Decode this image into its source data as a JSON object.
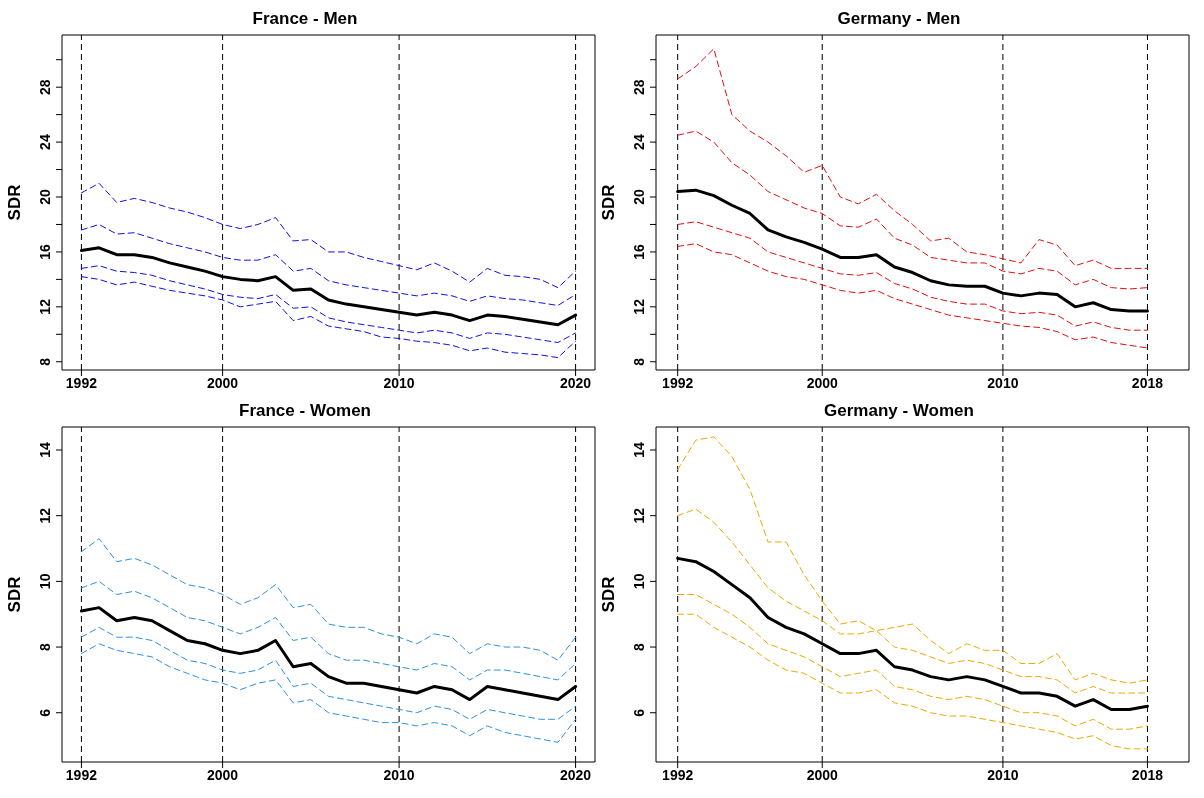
{
  "chart_data": [
    {
      "type": "line",
      "title": "France - Men",
      "ylabel": "SDR",
      "grid": false,
      "marker": "none",
      "x": [
        1992,
        1993,
        1994,
        1995,
        1996,
        1997,
        1998,
        1999,
        2000,
        2001,
        2002,
        2003,
        2004,
        2005,
        2006,
        2007,
        2008,
        2009,
        2010,
        2011,
        2012,
        2013,
        2014,
        2015,
        2016,
        2017,
        2018,
        2019,
        2020
      ],
      "xlim": [
        1990.9,
        2021.1
      ],
      "xticks": [
        1992,
        2000,
        2010,
        2020
      ],
      "ylim": [
        7.4,
        31.8
      ],
      "yticks": [
        8,
        {
          "value": 10,
          "label": null
        },
        12,
        {
          "value": 14,
          "label": null
        },
        16,
        {
          "value": 18,
          "label": null
        },
        20,
        {
          "value": 22,
          "label": null
        },
        24,
        {
          "value": 26,
          "label": null
        },
        28,
        {
          "value": 30,
          "label": null
        }
      ],
      "ref_lines": [
        {
          "axis": "x",
          "value": 1992,
          "color": "#000000",
          "line_style": "dashed"
        },
        {
          "axis": "x",
          "value": 2000,
          "color": "#000000",
          "line_style": "dashed"
        },
        {
          "axis": "x",
          "value": 2010,
          "color": "#000000",
          "line_style": "dashed"
        },
        {
          "axis": "x",
          "value": 2020,
          "color": "#000000",
          "line_style": "dashed"
        }
      ],
      "series": [
        {
          "color": "#1010e0",
          "line_style": "dashed",
          "values": [
            20.3,
            21.0,
            19.6,
            19.9,
            19.6,
            19.2,
            18.9,
            18.5,
            18.0,
            17.7,
            18.0,
            18.5,
            16.8,
            16.9,
            16.0,
            16.0,
            15.6,
            15.3,
            15.0,
            14.7,
            15.2,
            14.6,
            13.8,
            14.8,
            14.3,
            14.2,
            14.0,
            13.4,
            14.6
          ]
        },
        {
          "color": "#1010e0",
          "line_style": "dashed",
          "values": [
            17.6,
            18.0,
            17.3,
            17.4,
            17.0,
            16.6,
            16.3,
            16.0,
            15.6,
            15.4,
            15.4,
            15.8,
            14.6,
            14.8,
            13.9,
            13.6,
            13.4,
            13.2,
            13.0,
            12.8,
            13.0,
            12.8,
            12.4,
            12.8,
            12.6,
            12.5,
            12.3,
            12.1,
            12.9
          ]
        },
        {
          "color": "#1010e0",
          "line_style": "dashed",
          "values": [
            14.8,
            15.0,
            14.6,
            14.5,
            14.3,
            13.9,
            13.6,
            13.3,
            12.9,
            12.7,
            12.6,
            12.9,
            11.9,
            12.0,
            11.2,
            10.9,
            10.7,
            10.5,
            10.3,
            10.1,
            10.3,
            10.1,
            9.7,
            10.1,
            10.0,
            9.8,
            9.6,
            9.4,
            10.1
          ]
        },
        {
          "color": "#1010e0",
          "line_style": "dashed",
          "values": [
            14.2,
            14.0,
            13.6,
            13.8,
            13.5,
            13.2,
            13.0,
            12.8,
            12.5,
            12.0,
            12.2,
            12.4,
            11.0,
            11.3,
            10.6,
            10.4,
            10.2,
            9.8,
            9.7,
            9.5,
            9.4,
            9.2,
            8.8,
            9.0,
            8.7,
            8.6,
            8.5,
            8.3,
            9.5
          ]
        },
        {
          "color": "#000000",
          "line_style": "solid",
          "values": [
            16.1,
            16.3,
            15.8,
            15.8,
            15.6,
            15.2,
            14.9,
            14.6,
            14.2,
            14.0,
            13.9,
            14.2,
            13.2,
            13.3,
            12.5,
            12.2,
            12.0,
            11.8,
            11.6,
            11.4,
            11.6,
            11.4,
            11.0,
            11.4,
            11.3,
            11.1,
            10.9,
            10.7,
            11.4
          ]
        }
      ]
    },
    {
      "type": "line",
      "title": "Germany - Men",
      "ylabel": "SDR",
      "grid": false,
      "marker": "none",
      "x": [
        1992,
        1993,
        1994,
        1995,
        1996,
        1997,
        1998,
        1999,
        2000,
        2001,
        2002,
        2003,
        2004,
        2005,
        2006,
        2007,
        2008,
        2009,
        2010,
        2011,
        2012,
        2013,
        2014,
        2015,
        2016,
        2017,
        2018
      ],
      "xlim": [
        1990.8,
        2020.3
      ],
      "xticks": [
        1992,
        2000,
        2010,
        2018
      ],
      "ylim": [
        7.4,
        31.8
      ],
      "yticks": [
        8,
        {
          "value": 10,
          "label": null
        },
        12,
        {
          "value": 14,
          "label": null
        },
        16,
        {
          "value": 18,
          "label": null
        },
        20,
        {
          "value": 22,
          "label": null
        },
        24,
        {
          "value": 26,
          "label": null
        },
        28,
        {
          "value": 30,
          "label": null
        }
      ],
      "ref_lines": [
        {
          "axis": "x",
          "value": 1992,
          "color": "#000000",
          "line_style": "dashed"
        },
        {
          "axis": "x",
          "value": 2000,
          "color": "#000000",
          "line_style": "dashed"
        },
        {
          "axis": "x",
          "value": 2010,
          "color": "#000000",
          "line_style": "dashed"
        },
        {
          "axis": "x",
          "value": 2018,
          "color": "#000000",
          "line_style": "dashed"
        }
      ],
      "series": [
        {
          "color": "#e01010",
          "line_style": "dashed",
          "values": [
            28.6,
            29.5,
            30.8,
            26.0,
            24.8,
            24.0,
            23.0,
            21.8,
            22.3,
            20.0,
            19.5,
            20.2,
            19.0,
            18.0,
            16.8,
            17.0,
            16.0,
            15.8,
            15.5,
            15.2,
            16.9,
            16.5,
            15.0,
            15.4,
            14.8,
            14.8,
            14.8
          ]
        },
        {
          "color": "#e01010",
          "line_style": "dashed",
          "values": [
            24.5,
            24.8,
            24.0,
            22.5,
            21.6,
            20.4,
            19.8,
            19.2,
            18.8,
            17.9,
            17.8,
            18.4,
            17.0,
            16.5,
            15.6,
            15.4,
            15.2,
            15.2,
            14.6,
            14.4,
            14.8,
            14.6,
            13.6,
            14.0,
            13.4,
            13.3,
            13.4
          ]
        },
        {
          "color": "#e01010",
          "line_style": "dashed",
          "values": [
            18.0,
            18.2,
            17.8,
            17.4,
            17.0,
            16.0,
            15.6,
            15.2,
            14.8,
            14.4,
            14.3,
            14.5,
            13.7,
            13.3,
            12.7,
            12.4,
            12.2,
            12.2,
            11.7,
            11.5,
            11.6,
            11.4,
            10.6,
            10.9,
            10.5,
            10.3,
            10.3
          ]
        },
        {
          "color": "#e01010",
          "line_style": "dashed",
          "values": [
            16.4,
            16.6,
            16.0,
            15.8,
            15.2,
            14.6,
            14.2,
            14.0,
            13.6,
            13.2,
            13.0,
            13.2,
            12.6,
            12.2,
            11.8,
            11.4,
            11.2,
            11.0,
            10.8,
            10.6,
            10.5,
            10.2,
            9.6,
            9.8,
            9.4,
            9.2,
            9.0
          ]
        },
        {
          "color": "#000000",
          "line_style": "solid",
          "values": [
            20.4,
            20.5,
            20.1,
            19.4,
            18.8,
            17.6,
            17.1,
            16.7,
            16.2,
            15.6,
            15.6,
            15.8,
            14.9,
            14.5,
            13.9,
            13.6,
            13.5,
            13.5,
            13.0,
            12.8,
            13.0,
            12.9,
            12.0,
            12.3,
            11.8,
            11.7,
            11.7
          ]
        }
      ]
    },
    {
      "type": "line",
      "title": "France - Women",
      "ylabel": "SDR",
      "grid": false,
      "marker": "none",
      "x": [
        1992,
        1993,
        1994,
        1995,
        1996,
        1997,
        1998,
        1999,
        2000,
        2001,
        2002,
        2003,
        2004,
        2005,
        2006,
        2007,
        2008,
        2009,
        2010,
        2011,
        2012,
        2013,
        2014,
        2015,
        2016,
        2017,
        2018,
        2019,
        2020
      ],
      "xlim": [
        1990.9,
        2021.1
      ],
      "xticks": [
        1992,
        2000,
        2010,
        2020
      ],
      "ylim": [
        4.5,
        14.7
      ],
      "yticks": [
        6,
        8,
        10,
        12,
        14
      ],
      "ref_lines": [
        {
          "axis": "x",
          "value": 1992,
          "color": "#000000",
          "line_style": "dashed"
        },
        {
          "axis": "x",
          "value": 2000,
          "color": "#000000",
          "line_style": "dashed"
        },
        {
          "axis": "x",
          "value": 2010,
          "color": "#000000",
          "line_style": "dashed"
        },
        {
          "axis": "x",
          "value": 2020,
          "color": "#000000",
          "line_style": "dashed"
        }
      ],
      "series": [
        {
          "color": "#2e90e0",
          "line_style": "dashed",
          "values": [
            10.9,
            11.3,
            10.6,
            10.7,
            10.5,
            10.2,
            9.9,
            9.8,
            9.6,
            9.3,
            9.5,
            9.9,
            9.2,
            9.3,
            8.7,
            8.6,
            8.6,
            8.4,
            8.3,
            8.1,
            8.4,
            8.3,
            7.8,
            8.1,
            8.0,
            8.0,
            7.9,
            7.6,
            8.3
          ]
        },
        {
          "color": "#2e90e0",
          "line_style": "dashed",
          "values": [
            9.8,
            10.0,
            9.6,
            9.7,
            9.5,
            9.2,
            8.9,
            8.8,
            8.6,
            8.4,
            8.6,
            8.9,
            8.2,
            8.3,
            7.8,
            7.6,
            7.6,
            7.5,
            7.4,
            7.3,
            7.5,
            7.4,
            7.0,
            7.3,
            7.3,
            7.2,
            7.1,
            7.0,
            7.5
          ]
        },
        {
          "color": "#2e90e0",
          "line_style": "dashed",
          "values": [
            8.3,
            8.6,
            8.3,
            8.3,
            8.2,
            7.9,
            7.6,
            7.5,
            7.3,
            7.2,
            7.3,
            7.6,
            6.8,
            6.9,
            6.5,
            6.4,
            6.3,
            6.2,
            6.1,
            6.0,
            6.2,
            6.1,
            5.8,
            6.1,
            6.0,
            5.9,
            5.8,
            5.8,
            6.2
          ]
        },
        {
          "color": "#2e90e0",
          "line_style": "dashed",
          "values": [
            7.8,
            8.1,
            7.9,
            7.8,
            7.7,
            7.4,
            7.2,
            7.0,
            6.9,
            6.7,
            6.9,
            7.0,
            6.3,
            6.4,
            6.0,
            5.9,
            5.8,
            5.7,
            5.7,
            5.6,
            5.7,
            5.6,
            5.3,
            5.6,
            5.4,
            5.3,
            5.2,
            5.1,
            5.8
          ]
        },
        {
          "color": "#000000",
          "line_style": "solid",
          "values": [
            9.1,
            9.2,
            8.8,
            8.9,
            8.8,
            8.5,
            8.2,
            8.1,
            7.9,
            7.8,
            7.9,
            8.2,
            7.4,
            7.5,
            7.1,
            6.9,
            6.9,
            6.8,
            6.7,
            6.6,
            6.8,
            6.7,
            6.4,
            6.8,
            6.7,
            6.6,
            6.5,
            6.4,
            6.8
          ]
        }
      ]
    },
    {
      "type": "line",
      "title": "Germany - Women",
      "ylabel": "SDR",
      "grid": false,
      "marker": "none",
      "x": [
        1992,
        1993,
        1994,
        1995,
        1996,
        1997,
        1998,
        1999,
        2000,
        2001,
        2002,
        2003,
        2004,
        2005,
        2006,
        2007,
        2008,
        2009,
        2010,
        2011,
        2012,
        2013,
        2014,
        2015,
        2016,
        2017,
        2018
      ],
      "xlim": [
        1990.8,
        2020.3
      ],
      "xticks": [
        1992,
        2000,
        2010,
        2018
      ],
      "ylim": [
        4.5,
        14.7
      ],
      "yticks": [
        6,
        8,
        10,
        12,
        14
      ],
      "ref_lines": [
        {
          "axis": "x",
          "value": 1992,
          "color": "#000000",
          "line_style": "dashed"
        },
        {
          "axis": "x",
          "value": 2000,
          "color": "#000000",
          "line_style": "dashed"
        },
        {
          "axis": "x",
          "value": 2010,
          "color": "#000000",
          "line_style": "dashed"
        },
        {
          "axis": "x",
          "value": 2018,
          "color": "#000000",
          "line_style": "dashed"
        }
      ],
      "series": [
        {
          "color": "#f0a800",
          "line_style": "dashed",
          "values": [
            13.4,
            14.3,
            14.4,
            13.8,
            12.8,
            11.2,
            11.2,
            10.2,
            9.4,
            8.7,
            8.8,
            8.5,
            8.6,
            8.7,
            8.2,
            7.8,
            8.1,
            7.9,
            7.9,
            7.5,
            7.5,
            7.8,
            7.0,
            7.2,
            7.0,
            6.9,
            7.0
          ]
        },
        {
          "color": "#f0a800",
          "line_style": "dashed",
          "values": [
            12.0,
            12.2,
            11.8,
            11.2,
            10.5,
            9.8,
            9.4,
            9.1,
            8.8,
            8.4,
            8.4,
            8.5,
            8.0,
            7.9,
            7.7,
            7.5,
            7.6,
            7.5,
            7.3,
            7.1,
            7.1,
            7.0,
            6.6,
            6.8,
            6.6,
            6.6,
            6.6
          ]
        },
        {
          "color": "#f0a800",
          "line_style": "dashed",
          "values": [
            9.6,
            9.6,
            9.3,
            9.0,
            8.6,
            8.1,
            7.9,
            7.7,
            7.4,
            7.1,
            7.2,
            7.3,
            6.8,
            6.7,
            6.5,
            6.4,
            6.5,
            6.4,
            6.2,
            6.0,
            6.0,
            5.9,
            5.6,
            5.8,
            5.5,
            5.5,
            5.6
          ]
        },
        {
          "color": "#f0a800",
          "line_style": "dashed",
          "values": [
            9.0,
            9.0,
            8.6,
            8.3,
            8.0,
            7.6,
            7.3,
            7.2,
            6.9,
            6.6,
            6.6,
            6.7,
            6.3,
            6.2,
            6.0,
            5.9,
            5.9,
            5.8,
            5.7,
            5.6,
            5.5,
            5.4,
            5.2,
            5.3,
            5.0,
            4.9,
            4.9
          ]
        },
        {
          "color": "#000000",
          "line_style": "solid",
          "values": [
            10.7,
            10.6,
            10.3,
            9.9,
            9.5,
            8.9,
            8.6,
            8.4,
            8.1,
            7.8,
            7.8,
            7.9,
            7.4,
            7.3,
            7.1,
            7.0,
            7.1,
            7.0,
            6.8,
            6.6,
            6.6,
            6.5,
            6.2,
            6.4,
            6.1,
            6.1,
            6.2
          ]
        }
      ]
    }
  ]
}
